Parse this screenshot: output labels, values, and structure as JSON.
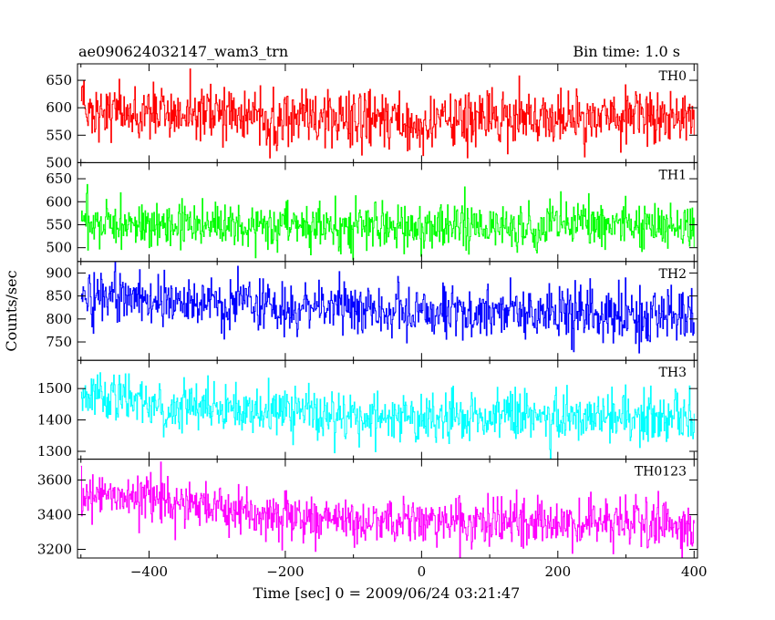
{
  "header": {
    "title": "ae090624032147_wam3_trn",
    "bin_time": "Bin time: 1.0 s"
  },
  "chart_data": {
    "type": "line",
    "title": "ae090624032147_wam3_trn",
    "subtitle": "Bin time: 1.0 s",
    "xlabel": "Time [sec] 0 = 2009/06/24 03:21:47",
    "ylabel": "Counts/sec",
    "xlim": [
      -505,
      405
    ],
    "x_ticks": [
      -400,
      -200,
      0,
      200,
      400
    ],
    "x_tick_labels": [
      "−400",
      "−200",
      "0",
      "200",
      "400"
    ],
    "x_range": [
      -500,
      400
    ],
    "x_step": 1,
    "series": [
      {
        "name": "TH0",
        "color": "#ff0000",
        "ylim": [
          500,
          680
        ],
        "y_ticks": [
          500,
          550,
          600,
          650
        ],
        "y_tick_labels": [
          "500",
          "550",
          "600",
          "650"
        ],
        "trend": [
          [
            -500,
            600
          ],
          [
            -400,
            595
          ],
          [
            -200,
            585
          ],
          [
            0,
            573
          ],
          [
            200,
            580
          ],
          [
            400,
            582
          ]
        ],
        "noise": 25
      },
      {
        "name": "TH1",
        "color": "#00ff00",
        "ylim": [
          470,
          685
        ],
        "y_ticks": [
          500,
          550,
          600,
          650
        ],
        "y_tick_labels": [
          "500",
          "550",
          "600",
          "650"
        ],
        "trend": [
          [
            -500,
            555
          ],
          [
            -300,
            550
          ],
          [
            -200,
            548
          ],
          [
            0,
            545
          ],
          [
            200,
            548
          ],
          [
            400,
            550
          ]
        ],
        "noise": 25
      },
      {
        "name": "TH2",
        "color": "#0000ff",
        "ylim": [
          710,
          925
        ],
        "y_ticks": [
          750,
          800,
          850,
          900
        ],
        "y_tick_labels": [
          "750",
          "800",
          "850",
          "900"
        ],
        "trend": [
          [
            -500,
            850
          ],
          [
            -400,
            845
          ],
          [
            -300,
            830
          ],
          [
            -200,
            820
          ],
          [
            0,
            815
          ],
          [
            200,
            812
          ],
          [
            400,
            810
          ]
        ],
        "noise": 30
      },
      {
        "name": "TH3",
        "color": "#00ffff",
        "ylim": [
          1275,
          1590
        ],
        "y_ticks": [
          1300,
          1400,
          1500
        ],
        "y_tick_labels": [
          "1300",
          "1400",
          "1500"
        ],
        "trend": [
          [
            -500,
            1480
          ],
          [
            -400,
            1455
          ],
          [
            -300,
            1440
          ],
          [
            -200,
            1420
          ],
          [
            0,
            1410
          ],
          [
            200,
            1410
          ],
          [
            400,
            1405
          ]
        ],
        "noise": 40
      },
      {
        "name": "TH0123",
        "color": "#ff00ff",
        "ylim": [
          3150,
          3720
        ],
        "y_ticks": [
          3200,
          3400,
          3600
        ],
        "y_tick_labels": [
          "3200",
          "3400",
          "3600"
        ],
        "trend": [
          [
            -500,
            3540
          ],
          [
            -400,
            3500
          ],
          [
            -300,
            3440
          ],
          [
            -200,
            3390
          ],
          [
            0,
            3360
          ],
          [
            200,
            3350
          ],
          [
            400,
            3330
          ]
        ],
        "noise": 70
      }
    ]
  }
}
